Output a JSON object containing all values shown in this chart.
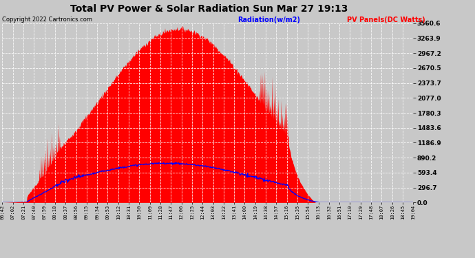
{
  "title": "Total PV Power & Solar Radiation Sun Mar 27 19:13",
  "copyright": "Copyright 2022 Cartronics.com",
  "legend_radiation": "Radiation(w/m2)",
  "legend_pv": "PV Panels(DC Watts)",
  "ylabel_right_vals": [
    3560.6,
    3263.9,
    2967.2,
    2670.5,
    2373.7,
    2077.0,
    1780.3,
    1483.6,
    1186.9,
    890.2,
    593.4,
    296.7,
    0.0
  ],
  "ymax": 3560.6,
  "ymin": 0.0,
  "background_color": "#c8c8c8",
  "plot_bg_color": "#c8c8c8",
  "grid_color": "#ffffff",
  "pv_color": "#ff0000",
  "radiation_color": "#0000ff",
  "title_color": "#000000",
  "copyright_color": "#000000",
  "x_labels": [
    "06:42",
    "07:02",
    "07:21",
    "07:40",
    "07:59",
    "08:18",
    "08:37",
    "08:56",
    "09:15",
    "09:34",
    "09:53",
    "10:12",
    "10:31",
    "10:50",
    "11:09",
    "11:28",
    "11:47",
    "12:06",
    "12:25",
    "12:44",
    "13:03",
    "13:22",
    "13:41",
    "14:00",
    "14:19",
    "14:38",
    "14:57",
    "15:16",
    "15:35",
    "15:54",
    "16:13",
    "16:32",
    "16:51",
    "17:10",
    "17:29",
    "17:48",
    "18:07",
    "18:26",
    "18:45",
    "19:04"
  ]
}
